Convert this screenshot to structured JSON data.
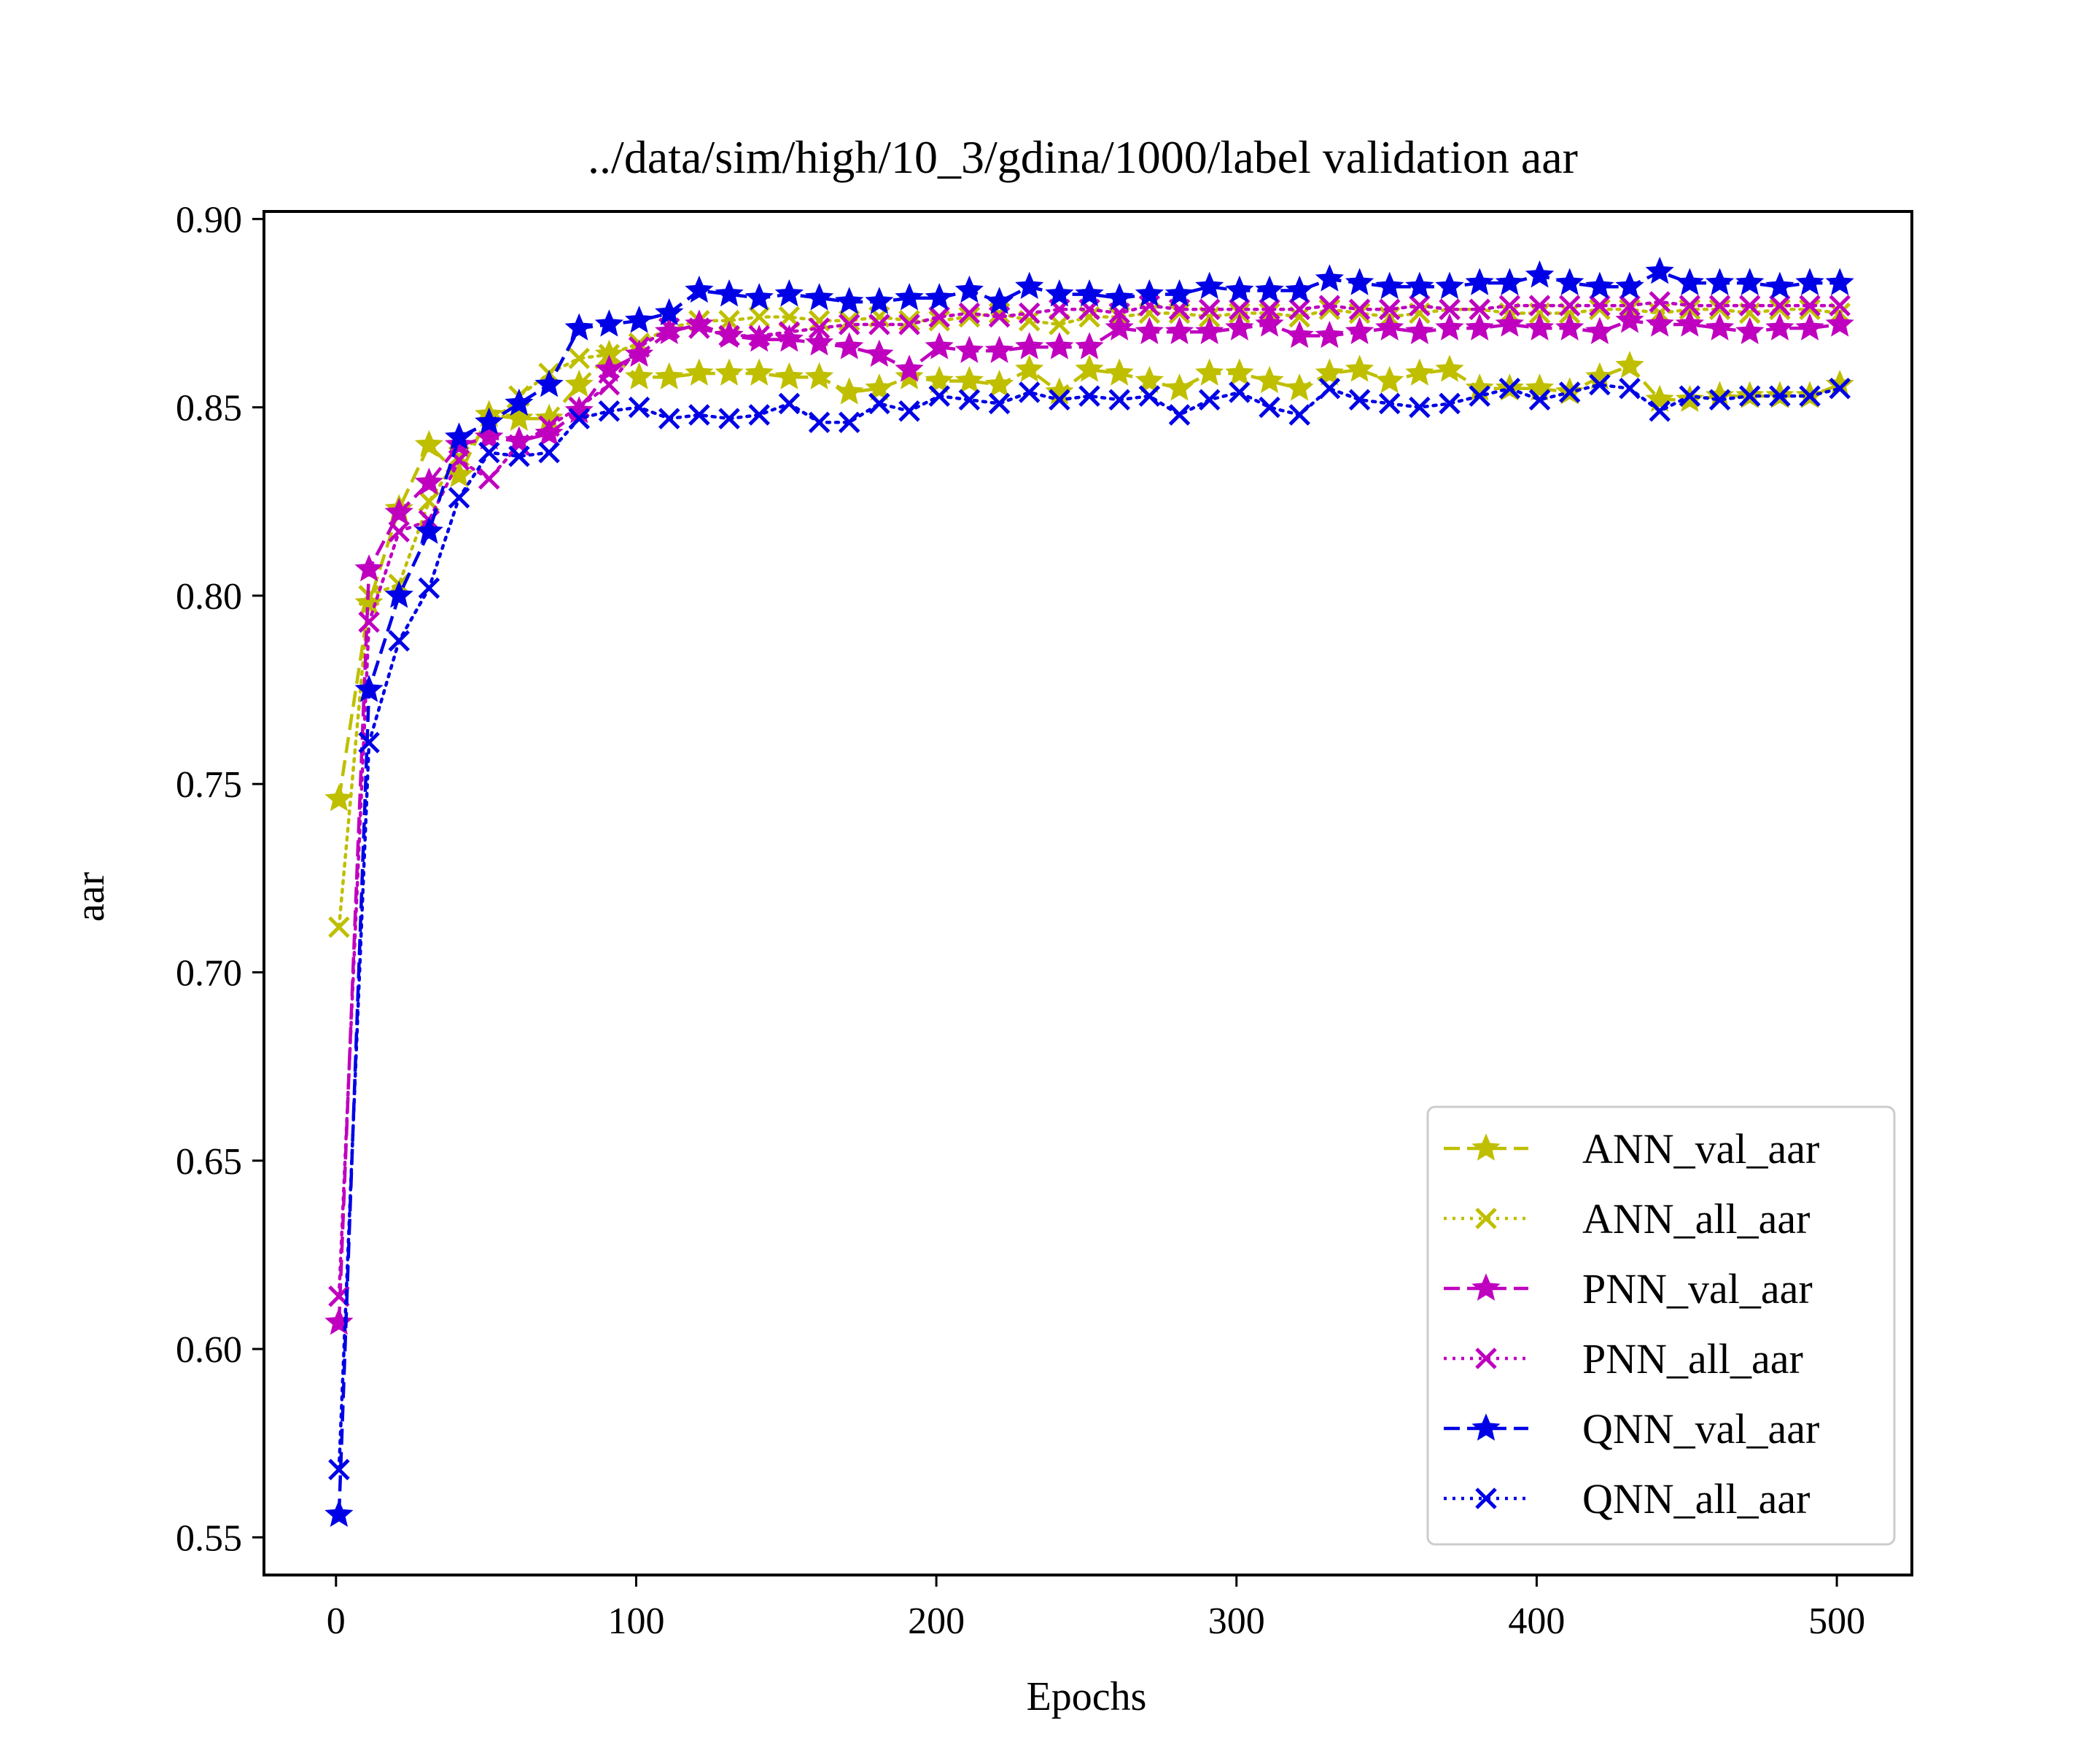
{
  "chart_data": {
    "type": "line",
    "title": "../data/sim/high/10_3/gdina/1000/label validation aar",
    "xlabel": "Epochs",
    "ylabel": "aar",
    "xlim": [
      -24,
      525
    ],
    "ylim": [
      0.54,
      0.902
    ],
    "xticks": [
      0,
      100,
      200,
      300,
      400,
      500
    ],
    "xtick_labels": [
      "0",
      "100",
      "200",
      "300",
      "400",
      "500"
    ],
    "yticks": [
      0.55,
      0.6,
      0.65,
      0.7,
      0.75,
      0.8,
      0.85,
      0.9
    ],
    "ytick_labels": [
      "0.55",
      "0.60",
      "0.65",
      "0.70",
      "0.75",
      "0.80",
      "0.85",
      "0.90"
    ],
    "grid": false,
    "legend_position": "lower-right",
    "x": [
      1,
      11,
      21,
      31,
      41,
      51,
      61,
      71,
      81,
      91,
      101,
      111,
      121,
      131,
      141,
      151,
      161,
      171,
      181,
      191,
      201,
      211,
      221,
      231,
      241,
      251,
      261,
      271,
      281,
      291,
      301,
      311,
      321,
      331,
      341,
      351,
      361,
      371,
      381,
      391,
      401,
      411,
      421,
      431,
      441,
      451,
      461,
      471,
      481,
      491,
      501
    ],
    "series": [
      {
        "name": "ANN_val_aar",
        "color": "#bfbf00",
        "linestyle": "dashed",
        "marker": "star",
        "values": [
          0.746,
          0.798,
          0.823,
          0.84,
          0.832,
          0.848,
          0.847,
          0.847,
          0.856,
          0.864,
          0.858,
          0.858,
          0.859,
          0.859,
          0.859,
          0.858,
          0.858,
          0.854,
          0.855,
          0.858,
          0.857,
          0.857,
          0.856,
          0.86,
          0.854,
          0.86,
          0.859,
          0.857,
          0.855,
          0.859,
          0.859,
          0.857,
          0.855,
          0.859,
          0.86,
          0.857,
          0.859,
          0.86,
          0.855,
          0.855,
          0.855,
          0.854,
          0.858,
          0.861,
          0.852,
          0.852,
          0.853,
          0.853,
          0.853,
          0.853,
          0.856
        ]
      },
      {
        "name": "ANN_all_aar",
        "color": "#bfbf00",
        "linestyle": "dotted",
        "marker": "x",
        "values": [
          0.712,
          0.8,
          0.803,
          0.825,
          0.837,
          0.845,
          0.853,
          0.859,
          0.863,
          0.864,
          0.867,
          0.871,
          0.873,
          0.873,
          0.874,
          0.874,
          0.873,
          0.873,
          0.874,
          0.873,
          0.873,
          0.874,
          0.875,
          0.873,
          0.872,
          0.874,
          0.874,
          0.875,
          0.875,
          0.874,
          0.875,
          0.875,
          0.874,
          0.876,
          0.875,
          0.874,
          0.875,
          0.876,
          0.876,
          0.875,
          0.875,
          0.875,
          0.876,
          0.876,
          0.875,
          0.876,
          0.876,
          0.875,
          0.876,
          0.876,
          0.875
        ]
      },
      {
        "name": "PNN_val_aar",
        "color": "#bf00bf",
        "linestyle": "dashed",
        "marker": "star",
        "values": [
          0.607,
          0.807,
          0.822,
          0.83,
          0.84,
          0.842,
          0.841,
          0.843,
          0.849,
          0.86,
          0.864,
          0.87,
          0.872,
          0.869,
          0.868,
          0.868,
          0.867,
          0.866,
          0.864,
          0.86,
          0.866,
          0.865,
          0.865,
          0.866,
          0.866,
          0.866,
          0.871,
          0.87,
          0.87,
          0.87,
          0.871,
          0.872,
          0.869,
          0.869,
          0.87,
          0.871,
          0.87,
          0.871,
          0.871,
          0.872,
          0.871,
          0.871,
          0.87,
          0.873,
          0.872,
          0.872,
          0.871,
          0.87,
          0.871,
          0.871,
          0.872
        ]
      },
      {
        "name": "PNN_all_aar",
        "color": "#bf00bf",
        "linestyle": "dotted",
        "marker": "x",
        "values": [
          0.614,
          0.793,
          0.817,
          0.82,
          0.836,
          0.831,
          0.84,
          0.845,
          0.85,
          0.856,
          0.866,
          0.871,
          0.871,
          0.869,
          0.869,
          0.87,
          0.871,
          0.872,
          0.872,
          0.872,
          0.874,
          0.875,
          0.874,
          0.875,
          0.876,
          0.876,
          0.875,
          0.877,
          0.876,
          0.876,
          0.876,
          0.876,
          0.876,
          0.877,
          0.876,
          0.876,
          0.877,
          0.876,
          0.876,
          0.877,
          0.877,
          0.877,
          0.877,
          0.877,
          0.878,
          0.877,
          0.877,
          0.877,
          0.877,
          0.877,
          0.877
        ]
      },
      {
        "name": "QNN_val_aar",
        "color": "#0000e6",
        "linestyle": "dashed",
        "marker": "star",
        "values": [
          0.556,
          0.775,
          0.8,
          0.817,
          0.842,
          0.846,
          0.851,
          0.856,
          0.871,
          0.872,
          0.873,
          0.875,
          0.881,
          0.88,
          0.879,
          0.88,
          0.879,
          0.878,
          0.878,
          0.879,
          0.879,
          0.881,
          0.878,
          0.882,
          0.88,
          0.88,
          0.879,
          0.88,
          0.88,
          0.882,
          0.881,
          0.881,
          0.881,
          0.884,
          0.883,
          0.882,
          0.882,
          0.882,
          0.883,
          0.883,
          0.885,
          0.883,
          0.882,
          0.882,
          0.886,
          0.883,
          0.883,
          0.883,
          0.882,
          0.883,
          0.883
        ]
      },
      {
        "name": "QNN_all_aar",
        "color": "#0000e6",
        "linestyle": "dotted",
        "marker": "x",
        "values": [
          0.568,
          0.761,
          0.788,
          0.802,
          0.826,
          0.838,
          0.837,
          0.838,
          0.847,
          0.849,
          0.85,
          0.847,
          0.848,
          0.847,
          0.848,
          0.851,
          0.846,
          0.846,
          0.851,
          0.849,
          0.853,
          0.852,
          0.851,
          0.854,
          0.852,
          0.853,
          0.852,
          0.853,
          0.848,
          0.852,
          0.854,
          0.85,
          0.848,
          0.855,
          0.852,
          0.851,
          0.85,
          0.851,
          0.853,
          0.855,
          0.852,
          0.854,
          0.856,
          0.855,
          0.849,
          0.853,
          0.852,
          0.853,
          0.853,
          0.853,
          0.855
        ]
      }
    ]
  }
}
